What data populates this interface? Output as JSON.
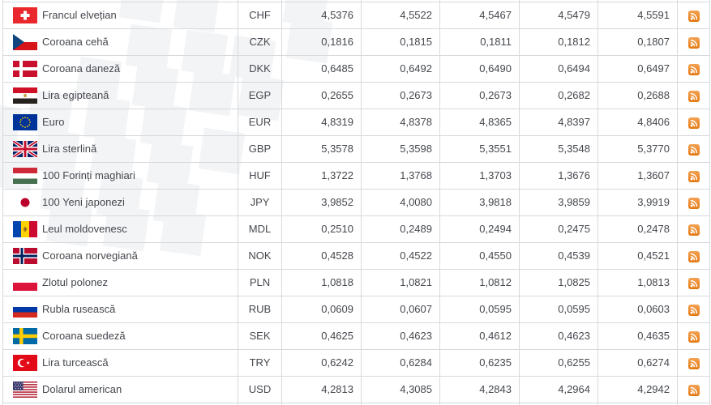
{
  "colors": {
    "rss_orange": "#ee7d18",
    "row_border": "#d7d9dc",
    "text": "#45484e",
    "watermark_square": "#f3f4f6"
  },
  "icons": {
    "rss": "rss-feed-icon"
  },
  "table": {
    "rows": [
      {
        "flag": "ch",
        "name": "Francul elvețian",
        "code": "CHF",
        "values": [
          "4,5376",
          "4,5522",
          "4,5467",
          "4,5479",
          "4,5591"
        ]
      },
      {
        "flag": "cz",
        "name": "Coroana cehă",
        "code": "CZK",
        "values": [
          "0,1816",
          "0,1815",
          "0,1811",
          "0,1812",
          "0,1807"
        ]
      },
      {
        "flag": "dk",
        "name": "Coroana daneză",
        "code": "DKK",
        "values": [
          "0,6485",
          "0,6492",
          "0,6490",
          "0,6494",
          "0,6497"
        ]
      },
      {
        "flag": "eg",
        "name": "Lira egipteană",
        "code": "EGP",
        "values": [
          "0,2655",
          "0,2673",
          "0,2673",
          "0,2682",
          "0,2688"
        ]
      },
      {
        "flag": "eu",
        "name": "Euro",
        "code": "EUR",
        "values": [
          "4,8319",
          "4,8378",
          "4,8365",
          "4,8397",
          "4,8406"
        ]
      },
      {
        "flag": "gb",
        "name": "Lira sterlină",
        "code": "GBP",
        "values": [
          "5,3578",
          "5,3598",
          "5,3551",
          "5,3548",
          "5,3770"
        ]
      },
      {
        "flag": "hu",
        "name": "100 Forinți maghiari",
        "code": "HUF",
        "values": [
          "1,3722",
          "1,3768",
          "1,3703",
          "1,3676",
          "1,3607"
        ]
      },
      {
        "flag": "jp",
        "name": "100 Yeni japonezi",
        "code": "JPY",
        "values": [
          "3,9852",
          "4,0080",
          "3,9818",
          "3,9859",
          "3,9919"
        ]
      },
      {
        "flag": "md",
        "name": "Leul moldovenesc",
        "code": "MDL",
        "values": [
          "0,2510",
          "0,2489",
          "0,2494",
          "0,2475",
          "0,2478"
        ]
      },
      {
        "flag": "no",
        "name": "Coroana norvegiană",
        "code": "NOK",
        "values": [
          "0,4528",
          "0,4522",
          "0,4550",
          "0,4539",
          "0,4521"
        ]
      },
      {
        "flag": "pl",
        "name": "Zlotul polonez",
        "code": "PLN",
        "values": [
          "1,0818",
          "1,0821",
          "1,0812",
          "1,0825",
          "1,0813"
        ]
      },
      {
        "flag": "ru",
        "name": "Rubla rusească",
        "code": "RUB",
        "values": [
          "0,0609",
          "0,0607",
          "0,0595",
          "0,0595",
          "0,0603"
        ]
      },
      {
        "flag": "se",
        "name": "Coroana suedeză",
        "code": "SEK",
        "values": [
          "0,4625",
          "0,4623",
          "0,4612",
          "0,4623",
          "0,4635"
        ]
      },
      {
        "flag": "tr",
        "name": "Lira turcească",
        "code": "TRY",
        "values": [
          "0,6242",
          "0,6284",
          "0,6235",
          "0,6255",
          "0,6274"
        ]
      },
      {
        "flag": "us",
        "name": "Dolarul american",
        "code": "USD",
        "values": [
          "4,2813",
          "4,3085",
          "4,2843",
          "4,2964",
          "4,2942"
        ]
      }
    ]
  }
}
